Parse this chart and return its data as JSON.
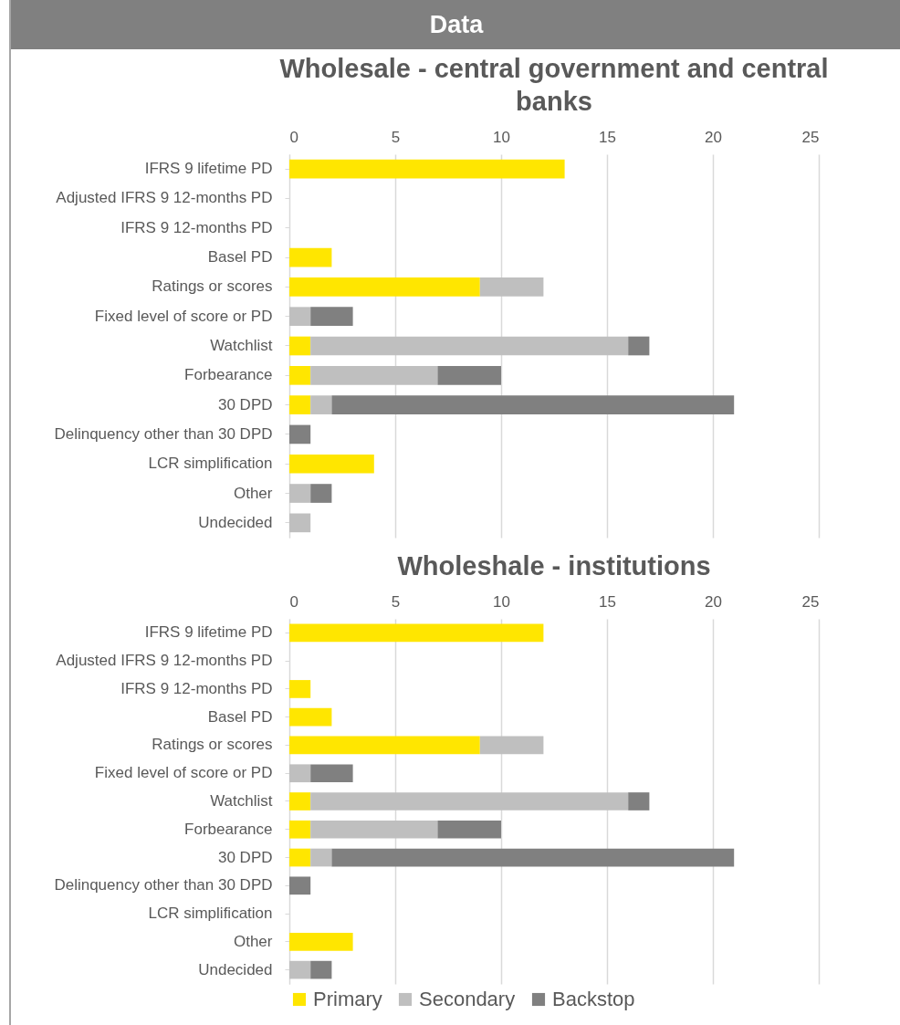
{
  "chart_data": [
    {
      "type": "bar",
      "orientation": "horizontal",
      "stacked": true,
      "title": "Wholesale - central government and central banks",
      "annotations": [
        "Data"
      ],
      "categories": [
        "IFRS 9 lifetime PD",
        "Adjusted IFRS 9 12-months PD",
        "IFRS 9 12-months PD",
        "Basel PD",
        "Ratings or scores",
        "Fixed level of score or PD",
        "Watchlist",
        "Forbearance",
        "30 DPD",
        "Delinquency other than 30 DPD",
        "LCR simplification",
        "Other",
        "Undecided"
      ],
      "series": [
        {
          "color": "#ffe600",
          "values": [
            13,
            null,
            null,
            2,
            9,
            null,
            1,
            1,
            1,
            null,
            4,
            null,
            null
          ]
        },
        {
          "color": "#bfbfbf",
          "values": [
            null,
            null,
            null,
            null,
            3,
            1,
            15,
            6,
            1,
            null,
            null,
            1,
            1
          ]
        },
        {
          "color": "#808080",
          "values": [
            null,
            null,
            null,
            null,
            null,
            2,
            1,
            3,
            19,
            1,
            null,
            1,
            null
          ]
        }
      ],
      "xlim": [
        0,
        25
      ],
      "xticks": [
        0,
        5,
        10,
        15,
        20,
        25
      ],
      "grid": "x"
    },
    {
      "type": "bar",
      "orientation": "horizontal",
      "stacked": true,
      "title": "Wholeshale - institutions",
      "categories": [
        "IFRS 9 lifetime PD",
        "Adjusted IFRS 9 12-months PD",
        "IFRS 9 12-months PD",
        "Basel PD",
        "Ratings or scores",
        "Fixed level of score or PD",
        "Watchlist",
        "Forbearance",
        "30 DPD",
        "Delinquency other than 30 DPD",
        "LCR simplification",
        "Other",
        "Undecided"
      ],
      "series": [
        {
          "name": "Primary",
          "color": "#ffe600",
          "values": [
            12,
            null,
            1,
            2,
            9,
            null,
            1,
            1,
            1,
            null,
            null,
            3,
            null
          ]
        },
        {
          "name": "Secondary",
          "color": "#bfbfbf",
          "values": [
            null,
            null,
            null,
            null,
            3,
            1,
            15,
            6,
            1,
            null,
            null,
            null,
            1
          ]
        },
        {
          "name": "Backstop",
          "color": "#808080",
          "values": [
            null,
            null,
            null,
            null,
            null,
            2,
            1,
            3,
            19,
            1,
            null,
            null,
            1
          ]
        }
      ],
      "xlim": [
        0,
        25
      ],
      "xticks": [
        0,
        5,
        10,
        15,
        20,
        25
      ],
      "grid": "x",
      "legend": "bottom"
    }
  ]
}
